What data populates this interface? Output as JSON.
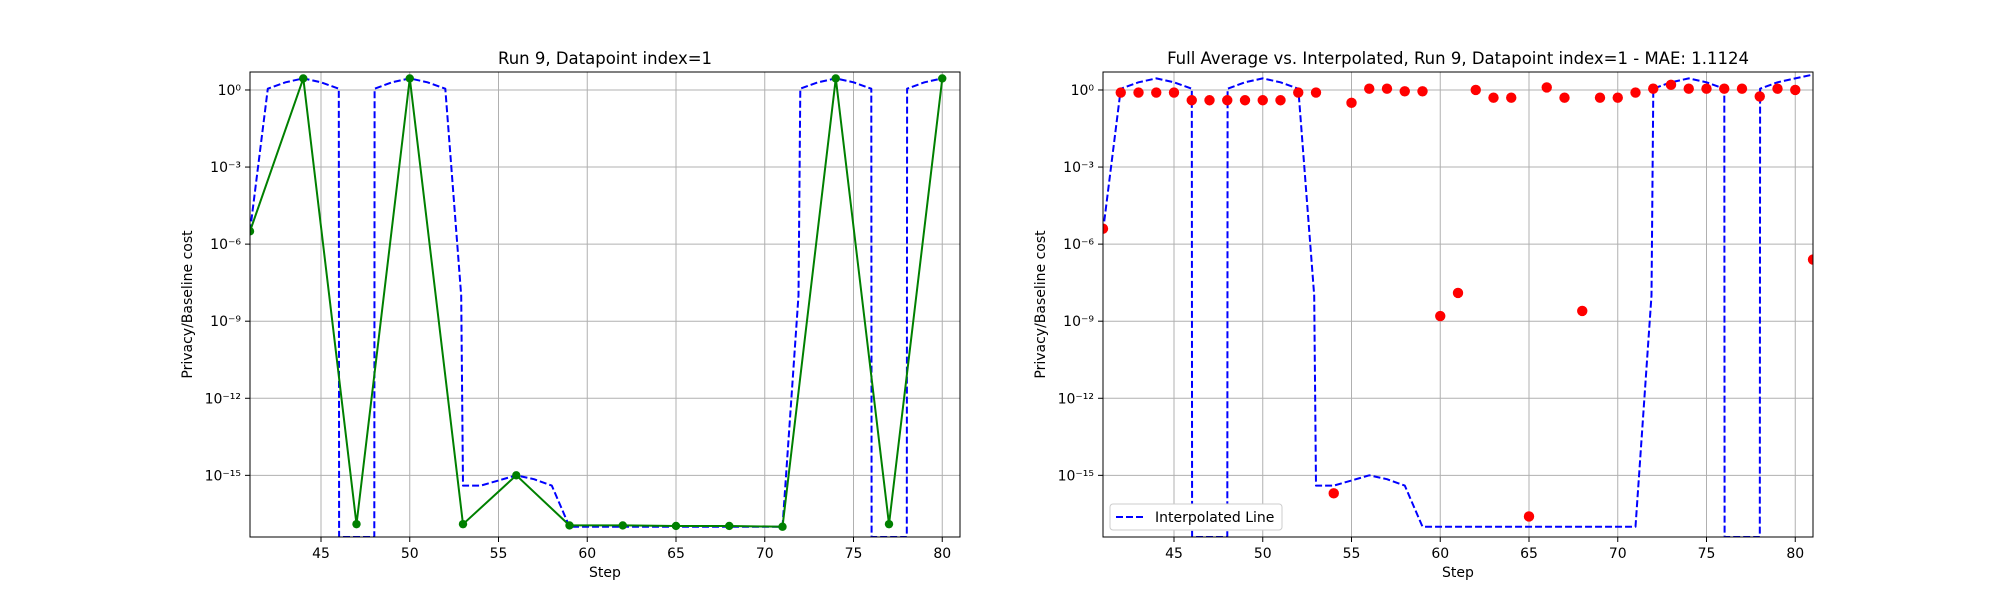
{
  "chart_data": [
    {
      "type": "line",
      "title": "Run 9, Datapoint index=1",
      "xlabel": "Step",
      "ylabel": "Privacy/Baseline cost",
      "yscale": "log",
      "xlim": [
        41,
        81
      ],
      "ylim_exp": [
        -17.4,
        0.7
      ],
      "x_ticks": [
        45,
        50,
        55,
        60,
        65,
        70,
        75,
        80
      ],
      "y_ticks": [
        {
          "exp": 0,
          "label": "10⁰"
        },
        {
          "exp": -3,
          "label": "10⁻³"
        },
        {
          "exp": -6,
          "label": "10⁻⁶"
        },
        {
          "exp": -9,
          "label": "10⁻⁹"
        },
        {
          "exp": -12,
          "label": "10⁻¹²"
        },
        {
          "exp": -15,
          "label": "10⁻¹⁵"
        }
      ],
      "grid": true,
      "series": [
        {
          "style": "dashed",
          "color": "#0000ff",
          "x": [
            41,
            42,
            43,
            44,
            45,
            46,
            46.02,
            48,
            48.02,
            49,
            50,
            51,
            52,
            52.9,
            53,
            54,
            55,
            56,
            57,
            58,
            59,
            60,
            61,
            62,
            63,
            64,
            65,
            66,
            67,
            68,
            69,
            70,
            71,
            71.9,
            72,
            73,
            74,
            75,
            76,
            76.02,
            78,
            78.02,
            79,
            80
          ],
          "y_exp": [
            -5.5,
            0.05,
            0.3,
            0.45,
            0.3,
            0.05,
            -18,
            -18,
            0.05,
            0.3,
            0.45,
            0.3,
            0.05,
            -8,
            -15.4,
            -15.4,
            -15.2,
            -15.0,
            -15.15,
            -15.4,
            -17.0,
            -17.0,
            -17.0,
            -17.0,
            -17.0,
            -17.0,
            -17.0,
            -17.0,
            -17.0,
            -17.0,
            -17.0,
            -17.0,
            -17.0,
            -8,
            0.05,
            0.3,
            0.45,
            0.3,
            0.05,
            -18,
            -18,
            0.05,
            0.3,
            0.45
          ]
        },
        {
          "style": "solid",
          "color": "#008000",
          "marker": "circle",
          "x": [
            41,
            44,
            47,
            50,
            53,
            56,
            59,
            62,
            65,
            68,
            71,
            74,
            77,
            80
          ],
          "y_exp": [
            -5.5,
            0.45,
            -16.9,
            0.45,
            -16.9,
            -15.0,
            -16.95,
            -16.95,
            -16.97,
            -16.97,
            -17.0,
            0.45,
            -16.9,
            0.45
          ]
        }
      ]
    },
    {
      "type": "line+scatter",
      "title": "Full Average vs. Interpolated, Run 9, Datapoint index=1 - MAE: 1.1124",
      "xlabel": "Step",
      "ylabel": "Privacy/Baseline cost",
      "yscale": "log",
      "xlim": [
        41,
        81
      ],
      "ylim_exp": [
        -17.4,
        0.7
      ],
      "x_ticks": [
        45,
        50,
        55,
        60,
        65,
        70,
        75,
        80
      ],
      "y_ticks": [
        {
          "exp": 0,
          "label": "10⁰"
        },
        {
          "exp": -3,
          "label": "10⁻³"
        },
        {
          "exp": -6,
          "label": "10⁻⁶"
        },
        {
          "exp": -9,
          "label": "10⁻⁹"
        },
        {
          "exp": -12,
          "label": "10⁻¹²"
        },
        {
          "exp": -15,
          "label": "10⁻¹⁵"
        }
      ],
      "grid": true,
      "legend": {
        "position": "lower-left",
        "entries": [
          {
            "label": "Interpolated Line",
            "style": "dashed",
            "color": "#0000ff"
          }
        ]
      },
      "series": [
        {
          "name": "Interpolated Line",
          "style": "dashed",
          "color": "#0000ff",
          "x": [
            41,
            42,
            43,
            44,
            45,
            46,
            46.02,
            48,
            48.02,
            49,
            50,
            51,
            52,
            52.9,
            53,
            54,
            55,
            56,
            57,
            58,
            59,
            60,
            61,
            62,
            63,
            64,
            65,
            66,
            67,
            68,
            69,
            70,
            71,
            71.9,
            72,
            73,
            74,
            75,
            76,
            76.02,
            78,
            78.02,
            79,
            80,
            81
          ],
          "y_exp": [
            -5.5,
            0.05,
            0.3,
            0.45,
            0.3,
            0.05,
            -18,
            -18,
            0.05,
            0.3,
            0.45,
            0.3,
            0.05,
            -8,
            -15.4,
            -15.4,
            -15.2,
            -15.0,
            -15.15,
            -15.4,
            -17.0,
            -17.0,
            -17.0,
            -17.0,
            -17.0,
            -17.0,
            -17.0,
            -17.0,
            -17.0,
            -17.0,
            -17.0,
            -17.0,
            -17.0,
            -8,
            0.05,
            0.3,
            0.45,
            0.3,
            0.05,
            -18,
            -18,
            0.05,
            0.3,
            0.45,
            0.6
          ]
        },
        {
          "style": "scatter",
          "color": "#ff0000",
          "x": [
            41,
            42,
            43,
            44,
            45,
            46,
            47,
            48,
            49,
            50,
            51,
            52,
            53,
            54,
            55,
            56,
            57,
            58,
            59,
            60,
            61,
            62,
            63,
            64,
            65,
            66,
            67,
            68,
            69,
            70,
            71,
            72,
            73,
            74,
            75,
            76,
            77,
            78,
            79,
            80,
            81
          ],
          "y_exp": [
            -5.4,
            -0.1,
            -0.1,
            -0.1,
            -0.1,
            -0.4,
            -0.4,
            -0.4,
            -0.4,
            -0.4,
            -0.4,
            -0.1,
            -0.1,
            -15.7,
            -0.5,
            0.05,
            0.05,
            -0.05,
            -0.05,
            -8.8,
            -7.9,
            0.0,
            -0.3,
            -0.3,
            -16.6,
            0.1,
            -0.3,
            -8.6,
            -0.3,
            -0.3,
            -0.1,
            0.05,
            0.2,
            0.05,
            0.05,
            0.05,
            0.05,
            -0.25,
            0.05,
            0.0,
            -6.6
          ]
        }
      ]
    }
  ]
}
